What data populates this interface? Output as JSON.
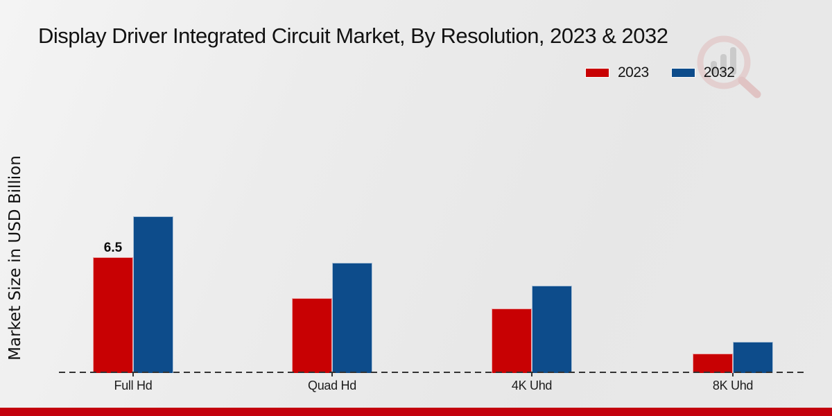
{
  "chart_data": {
    "type": "bar",
    "title": "Display Driver Integrated Circuit Market, By Resolution, 2023 & 2032",
    "ylabel": "Market Size in USD Billion",
    "xlabel": "",
    "categories": [
      "Full Hd",
      "Quad Hd",
      "4K Uhd",
      "8K Uhd"
    ],
    "series": [
      {
        "name": "2023",
        "color": "#c80103",
        "values": [
          6.5,
          4.2,
          3.6,
          1.1
        ]
      },
      {
        "name": "2032",
        "color": "#0d4c8b",
        "values": [
          8.8,
          6.2,
          4.9,
          1.75
        ]
      }
    ],
    "unit": "USD Billion",
    "ylim": [
      0,
      9.5
    ],
    "grid": false,
    "legend_position": "top-right",
    "baseline_style": "dashed",
    "bar_value_labels": [
      {
        "category": "Full Hd",
        "series": "2023",
        "text": "6.5"
      }
    ]
  },
  "footer": {
    "accent_color": "#c3010d"
  },
  "watermark": {
    "ring_color": "#dfb3b3",
    "bar_color": "#a8a8a8",
    "accent_color": "#d89898"
  }
}
